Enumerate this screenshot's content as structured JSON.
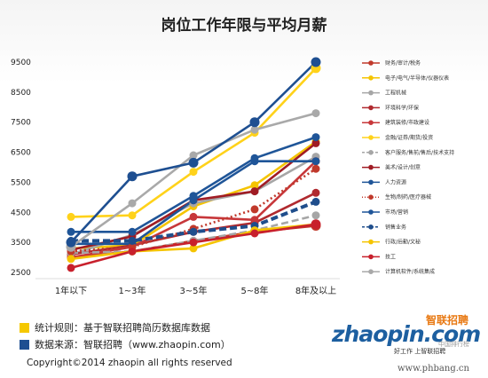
{
  "title": "岗位工作年限与平均月薪",
  "notes": {
    "rule_label": "统计规则：基于智联招聘简历数据库数据",
    "source_label": "数据来源：智联招聘（www.zhaopin.com）",
    "rule_color": "#f5c800",
    "source_color": "#1e4f91"
  },
  "copyright": "Copyright©2014 zhaopin all rights reserved",
  "logo": {
    "brand_cn": "智联招聘",
    "text": "zhaopin.com",
    "slogan": "好工作 上智联招聘",
    "badge": "中国排行榜"
  },
  "watermark_url": "www.phbang.cn",
  "chart_data": {
    "type": "line",
    "categories": [
      "1年以下",
      "1~3年",
      "3~5年",
      "5~8年",
      "8年及以上"
    ],
    "yticks": [
      2500,
      3500,
      4500,
      5500,
      6500,
      7500,
      8500,
      9500
    ],
    "ylim": [
      2500,
      9500
    ],
    "grid": false,
    "legend_position": "right",
    "series": [
      {
        "name": "财务/审计/税务",
        "color": "#c0392b",
        "style": "solid",
        "values": [
          3000,
          3200,
          3550,
          3850,
          4050
        ]
      },
      {
        "name": "电子/电气/半导体/仪器仪表",
        "color": "#f5c400",
        "style": "solid",
        "values": [
          3300,
          3400,
          4700,
          5400,
          6850
        ]
      },
      {
        "name": "工程机械",
        "color": "#a6a6a6",
        "style": "solid",
        "values": [
          3100,
          3750,
          4800,
          5200,
          6350
        ]
      },
      {
        "name": "环境科学/环保",
        "color": "#b02a2f",
        "style": "solid",
        "values": [
          3100,
          3400,
          3850,
          4150,
          5150
        ]
      },
      {
        "name": "建筑装修/市政建设",
        "color": "#c7373a",
        "style": "solid",
        "values": [
          3000,
          3350,
          4350,
          4250,
          6200
        ]
      },
      {
        "name": "金融/证券/期货/投资",
        "color": "#ffd21a",
        "style": "solid",
        "values": [
          4350,
          4400,
          5850,
          7150,
          9300
        ]
      },
      {
        "name": "客户服务/售前/售后/技术支持",
        "color": "#a6a6a6",
        "style": "dashed",
        "values": [
          3150,
          3200,
          3550,
          3900,
          4400
        ]
      },
      {
        "name": "美术/设计/创意",
        "color": "#a01c24",
        "style": "solid",
        "values": [
          3250,
          3700,
          4900,
          5200,
          6800
        ]
      },
      {
        "name": "人力资源",
        "color": "#1f5598",
        "style": "solid",
        "values": [
          3450,
          3450,
          4900,
          6200,
          6200
        ]
      },
      {
        "name": "生物/制药/医疗器械",
        "color": "#c0392b",
        "style": "dotted",
        "values": [
          3200,
          3350,
          3950,
          4600,
          5950
        ]
      },
      {
        "name": "市场/营销",
        "color": "#1f5598",
        "style": "solid",
        "values": [
          3850,
          3850,
          5050,
          6300,
          7000
        ]
      },
      {
        "name": "销售业务",
        "color": "#1f4e8c",
        "style": "dashed",
        "values": [
          3550,
          3550,
          3850,
          4050,
          4850
        ]
      },
      {
        "name": "行政/后勤/文秘",
        "color": "#f5c400",
        "style": "solid",
        "values": [
          2950,
          3200,
          3300,
          3900,
          4100
        ]
      },
      {
        "name": "技工",
        "color": "#c8202c",
        "style": "solid",
        "values": [
          2650,
          3200,
          3500,
          3800,
          4100
        ]
      },
      {
        "name": "计算机软件/系统集成",
        "color": "#a9a9a9",
        "style": "solid",
        "values": [
          3350,
          4800,
          6400,
          7250,
          7800
        ]
      },
      {
        "name": "",
        "color": "#1e4f91",
        "style": "solid",
        "values": [
          3500,
          5700,
          6150,
          7500,
          9500
        ]
      }
    ]
  }
}
